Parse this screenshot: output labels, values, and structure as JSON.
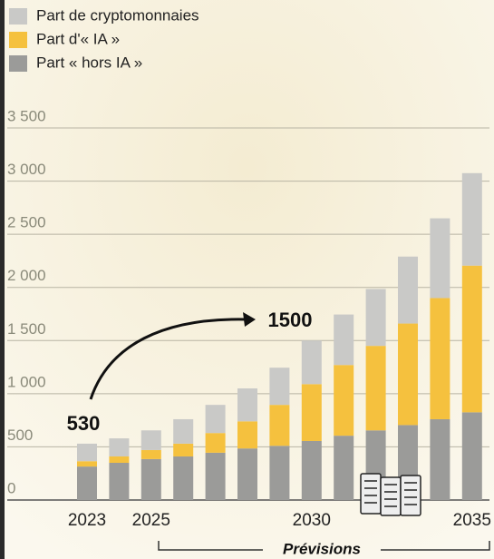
{
  "chart_data": {
    "type": "stacked_bar",
    "categories": [
      "2023",
      null,
      "2025",
      null,
      null,
      null,
      null,
      "2030",
      null,
      null,
      null,
      null,
      "2035"
    ],
    "series": [
      {
        "name": "Part de cryptomonnaies",
        "color": "#c9c9c7",
        "values": [
          165,
          170,
          185,
          230,
          265,
          310,
          350,
          410,
          475,
          535,
          630,
          750,
          870
        ]
      },
      {
        "name": "Part d'« IA »",
        "color": "#f5c13e",
        "values": [
          50,
          60,
          85,
          120,
          185,
          255,
          385,
          535,
          665,
          795,
          955,
          1140,
          1380
        ]
      },
      {
        "name": "Part « hors IA »",
        "color": "#9b9b99",
        "values": [
          315,
          350,
          385,
          410,
          445,
          485,
          510,
          555,
          605,
          655,
          705,
          760,
          825
        ]
      }
    ],
    "ylim": [
      0,
      3500
    ],
    "yticks": [
      0,
      500,
      {
        "value": 1000,
        "label": "1 000"
      },
      {
        "value": 1500,
        "label": "1 500"
      },
      {
        "value": 2000,
        "label": "2 000"
      },
      {
        "value": 2500,
        "label": "2 500"
      },
      {
        "value": 3000,
        "label": "3 000"
      },
      {
        "value": 3500,
        "label": "3 500"
      }
    ],
    "grid": true,
    "annotations": [
      "530",
      "1500"
    ],
    "forecast_label": "Prévisions"
  }
}
